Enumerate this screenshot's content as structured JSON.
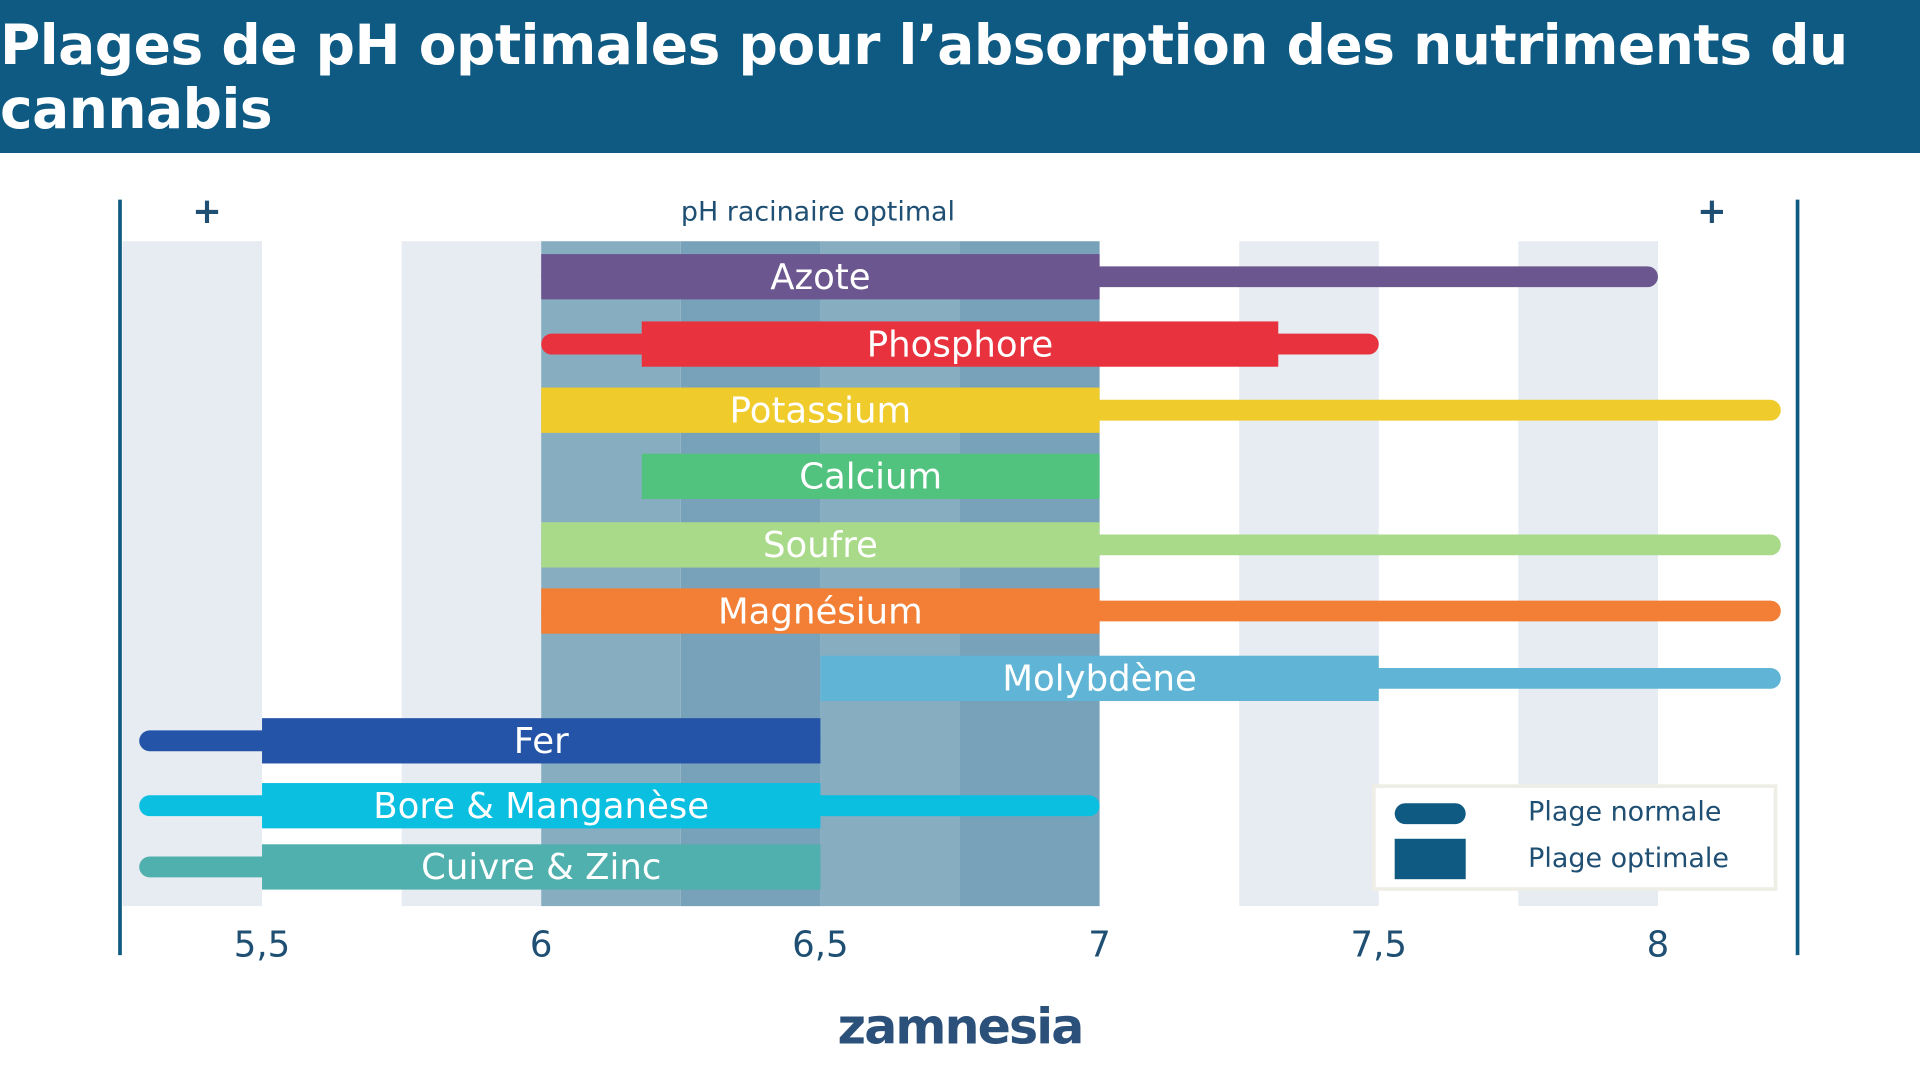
{
  "title": "Plages de pH optimales pour l’absorption des nutriments du cannabis",
  "logo": "zamnesia",
  "chart_data": {
    "type": "range-bar",
    "title": "Plages de pH optimales pour l’absorption des nutriments du cannabis",
    "annotation": "pH racinaire optimal",
    "optimal_root_ph": [
      6,
      7
    ],
    "plus_markers": [
      "+",
      "+"
    ],
    "xlim": [
      5.25,
      8.25
    ],
    "xticks": [
      5.5,
      6,
      6.5,
      7,
      7.5,
      8
    ],
    "xtick_labels": [
      "5,5",
      "6",
      "6,5",
      "7",
      "7,5",
      "8"
    ],
    "legend": {
      "placement": "bottom-right",
      "normal": "Plage normale",
      "optimal": "Plage optimale"
    },
    "series": [
      {
        "name": "Azote",
        "normal": [
          6,
          8
        ],
        "optimal": [
          6,
          7
        ],
        "color": "#6b5690"
      },
      {
        "name": "Phosphore",
        "normal": [
          6,
          7.5
        ],
        "optimal": [
          6.18,
          7.32
        ],
        "color": "#e8333f"
      },
      {
        "name": "Potassium",
        "normal": [
          6,
          8.22
        ],
        "optimal": [
          6,
          7
        ],
        "color": "#f0cb2c"
      },
      {
        "name": "Calcium",
        "normal": [
          6.18,
          7
        ],
        "optimal": [
          6.18,
          7
        ],
        "color": "#52c27f"
      },
      {
        "name": "Soufre",
        "normal": [
          6,
          8.22
        ],
        "optimal": [
          6,
          7
        ],
        "color": "#a8da8a"
      },
      {
        "name": "Magnésium",
        "normal": [
          6,
          8.22
        ],
        "optimal": [
          6,
          7
        ],
        "color": "#f27f35"
      },
      {
        "name": "Molybdène",
        "normal": [
          6.5,
          8.22
        ],
        "optimal": [
          6.5,
          7.5
        ],
        "color": "#60b5d6"
      },
      {
        "name": "Fer",
        "normal": [
          5.28,
          6.5
        ],
        "optimal": [
          5.5,
          6.5
        ],
        "color": "#2454a8"
      },
      {
        "name": "Bore & Manganèse",
        "normal": [
          5.28,
          7
        ],
        "optimal": [
          5.5,
          6.5
        ],
        "color": "#0bbfe0"
      },
      {
        "name": "Cuivre & Zinc",
        "normal": [
          5.28,
          6.5
        ],
        "optimal": [
          5.5,
          6.5
        ],
        "color": "#4fb0ae"
      }
    ]
  },
  "colors": {
    "header": "#0e5a82",
    "text": "#1f4f73",
    "legend": "#0e5a82"
  }
}
